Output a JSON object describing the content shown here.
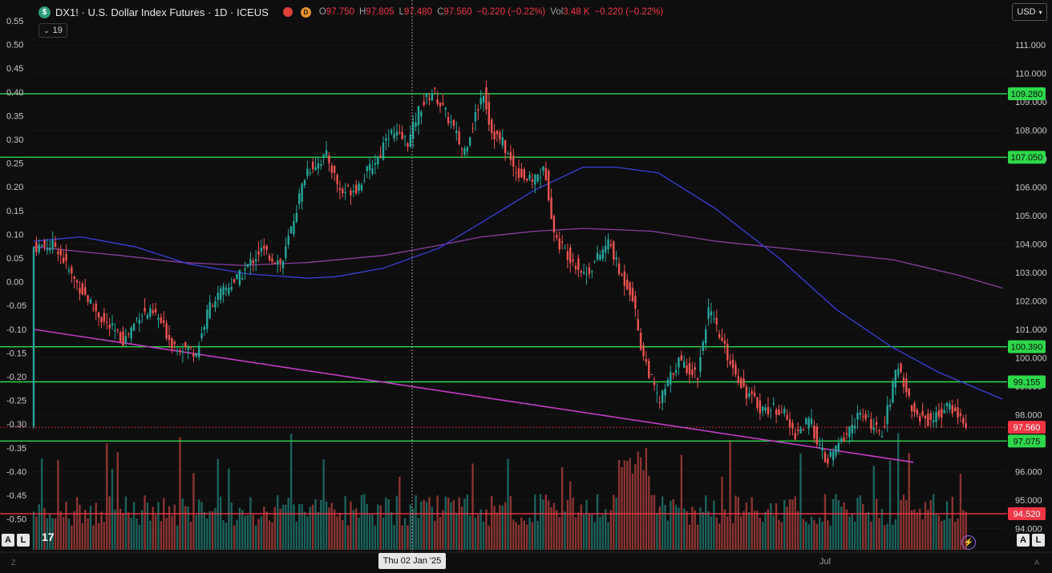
{
  "header": {
    "symbol_icon": "$",
    "title": "DX1! · U.S. Dollar Index Futures · 1D · ICEUS",
    "source_badge": "D",
    "open_label": "O",
    "open": "97.750",
    "high_label": "H",
    "high": "97.805",
    "low_label": "L",
    "low": "97.480",
    "close_label": "C",
    "close": "97.560",
    "change": "−0.220 (−0.22%)",
    "vol_label": "Vol",
    "vol": "3.48 K",
    "vol_change": "−0.220 (−0.22%)"
  },
  "toolbar": {
    "hide_indicators": "19",
    "currency": "USD",
    "auto_left": "A",
    "log_left": "L",
    "auto_right": "A",
    "log_right": "L",
    "logo": "17"
  },
  "left_axis_ticks": [
    "0.55",
    "0.50",
    "0.45",
    "0.40",
    "0.35",
    "0.30",
    "0.25",
    "0.20",
    "0.15",
    "0.10",
    "0.05",
    "0.00",
    "-0.05",
    "-0.10",
    "-0.15",
    "-0.20",
    "-0.25",
    "-0.30",
    "-0.35",
    "-0.40",
    "-0.45",
    "-0.50"
  ],
  "right_axis_ticks": [
    "111.000",
    "110.000",
    "109.000",
    "108.000",
    "107.000",
    "106.000",
    "105.000",
    "104.000",
    "103.000",
    "102.000",
    "101.000",
    "100.000",
    "99.000",
    "98.000",
    "97.000",
    "96.000",
    "95.000",
    "94.000"
  ],
  "levels": [
    {
      "label": "109.280",
      "value": 109.28,
      "color": "#2dd84a"
    },
    {
      "label": "107.050",
      "value": 107.05,
      "color": "#2dd84a"
    },
    {
      "label": "100.390",
      "value": 100.39,
      "color": "#2dd84a"
    },
    {
      "label": "99.155",
      "value": 99.155,
      "color": "#2dd84a"
    },
    {
      "label": "97.560",
      "value": 97.56,
      "color": "#f23645"
    },
    {
      "label": "97.075",
      "value": 97.075,
      "color": "#2dd84a"
    },
    {
      "label": "94.520",
      "value": 94.52,
      "color": "#f23645"
    }
  ],
  "crosshair_date": "Thu 02 Jan '25",
  "x_axis_labels": [
    "Jul"
  ],
  "corner_labels": {
    "left": "Z",
    "right": "A"
  },
  "colors": {
    "up": "#26a69a",
    "down": "#ef5350",
    "ma_fast": "#3b3fd9",
    "ma_slow": "#8b3fa0",
    "trendline": "#c23cc4"
  },
  "chart_data": {
    "type": "candlestick",
    "price_range": [
      93.6,
      111.6
    ],
    "trendline": [
      [
        0,
        101.0
      ],
      [
        1097,
        96.33
      ]
    ],
    "ma_fast_points": [
      [
        0,
        104.1
      ],
      [
        59,
        104.25
      ],
      [
        127,
        103.9
      ],
      [
        193,
        103.3
      ],
      [
        267,
        102.95
      ],
      [
        342,
        102.8
      ],
      [
        377,
        102.85
      ],
      [
        436,
        103.15
      ],
      [
        505,
        103.85
      ],
      [
        558,
        104.75
      ],
      [
        625,
        105.9
      ],
      [
        685,
        106.7
      ],
      [
        727,
        106.7
      ],
      [
        779,
        106.5
      ],
      [
        850,
        105.25
      ],
      [
        930,
        103.5
      ],
      [
        1001,
        101.7
      ],
      [
        1069,
        100.4
      ],
      [
        1128,
        99.5
      ],
      [
        1208,
        98.55
      ]
    ],
    "ma_slow_points": [
      [
        0,
        103.9
      ],
      [
        107,
        103.6
      ],
      [
        185,
        103.35
      ],
      [
        260,
        103.25
      ],
      [
        342,
        103.35
      ],
      [
        437,
        103.6
      ],
      [
        505,
        103.95
      ],
      [
        558,
        104.25
      ],
      [
        625,
        104.45
      ],
      [
        686,
        104.55
      ],
      [
        771,
        104.45
      ],
      [
        850,
        104.1
      ],
      [
        952,
        103.8
      ],
      [
        1071,
        103.45
      ],
      [
        1154,
        102.9
      ],
      [
        1208,
        102.45
      ]
    ],
    "path_anchors": [
      [
        42,
        103.9
      ],
      [
        70,
        103.95
      ],
      [
        90,
        102.85
      ],
      [
        130,
        101.25
      ],
      [
        155,
        100.6
      ],
      [
        175,
        101.6
      ],
      [
        195,
        101.5
      ],
      [
        215,
        100.5
      ],
      [
        245,
        100.2
      ],
      [
        262,
        101.9
      ],
      [
        300,
        102.9
      ],
      [
        325,
        103.8
      ],
      [
        352,
        103.3
      ],
      [
        360,
        104.2
      ],
      [
        382,
        106.6
      ],
      [
        408,
        107.1
      ],
      [
        425,
        105.8
      ],
      [
        445,
        106.0
      ],
      [
        475,
        107.2
      ],
      [
        482,
        107.95
      ],
      [
        510,
        107.6
      ],
      [
        522,
        108.7
      ],
      [
        540,
        109.4
      ],
      [
        565,
        108.1
      ],
      [
        578,
        107.2
      ],
      [
        603,
        109.4
      ],
      [
        612,
        108.0
      ],
      [
        627,
        107.55
      ],
      [
        640,
        106.7
      ],
      [
        660,
        106.2
      ],
      [
        680,
        106.6
      ],
      [
        692,
        104.2
      ],
      [
        730,
        102.9
      ],
      [
        760,
        104.1
      ],
      [
        772,
        103.0
      ],
      [
        788,
        102.3
      ],
      [
        800,
        100.3
      ],
      [
        822,
        98.4
      ],
      [
        845,
        99.9
      ],
      [
        870,
        99.4
      ],
      [
        883,
        101.7
      ],
      [
        910,
        99.9
      ],
      [
        930,
        98.8
      ],
      [
        950,
        98.2
      ],
      [
        975,
        98.2
      ],
      [
        990,
        97.3
      ],
      [
        1010,
        97.8
      ],
      [
        1030,
        96.3
      ],
      [
        1060,
        97.5
      ],
      [
        1070,
        98.0
      ],
      [
        1090,
        97.6
      ],
      [
        1098,
        97.2
      ],
      [
        1110,
        98.5
      ],
      [
        1120,
        99.8
      ],
      [
        1140,
        98.0
      ],
      [
        1160,
        97.8
      ],
      [
        1185,
        98.3
      ],
      [
        1208,
        97.56
      ]
    ],
    "close": 97.56
  }
}
